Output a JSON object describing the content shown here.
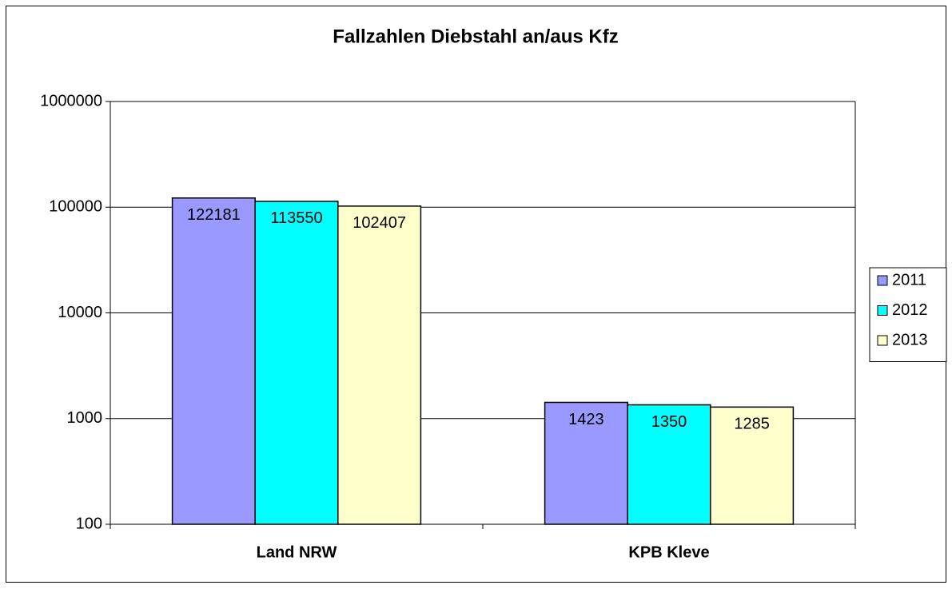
{
  "chart_data": {
    "type": "bar",
    "title": "Fallzahlen Diebstahl an/aus Kfz",
    "categories": [
      "Land NRW",
      "KPB Kleve"
    ],
    "series": [
      {
        "name": "2011",
        "color": "#9999ff",
        "values": [
          122181,
          1423
        ]
      },
      {
        "name": "2012",
        "color": "#00ffff",
        "values": [
          113550,
          1350
        ]
      },
      {
        "name": "2013",
        "color": "#ffffcc",
        "values": [
          102407,
          1285
        ]
      }
    ],
    "ylim": [
      100,
      1000000
    ],
    "yticks": [
      100,
      1000,
      10000,
      100000,
      1000000
    ],
    "log": true,
    "grid": true,
    "legend": "right"
  }
}
